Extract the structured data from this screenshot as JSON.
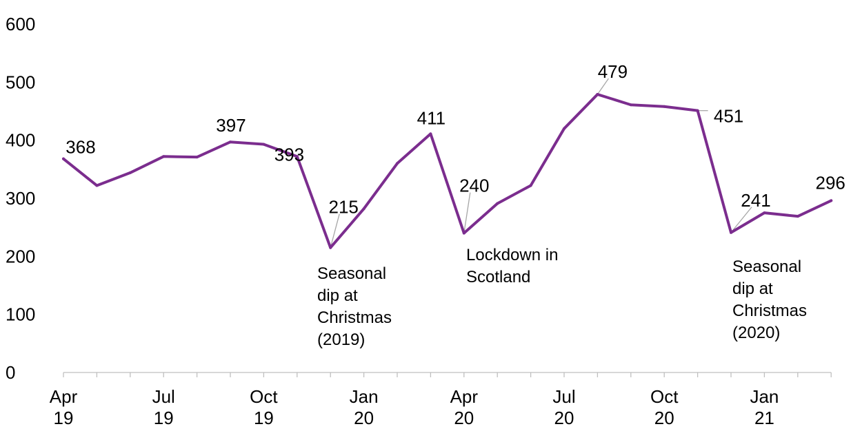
{
  "chart_data": {
    "type": "line",
    "title": "",
    "xlabel": "",
    "ylabel": "",
    "ylim": [
      0,
      600
    ],
    "yticks": [
      "0",
      "100",
      "200",
      "300",
      "400",
      "500",
      "600"
    ],
    "grid": false,
    "legend": "none",
    "x": [
      "Apr 19",
      "May 19",
      "Jun 19",
      "Jul 19",
      "Aug 19",
      "Sep 19",
      "Oct 19",
      "Nov 19",
      "Dec 19",
      "Jan 20",
      "Feb 20",
      "Mar 20",
      "Apr 20",
      "May 20",
      "Jun 20",
      "Jul 20",
      "Aug 20",
      "Sep 20",
      "Oct 20",
      "Nov 20",
      "Dec 20",
      "Jan 21",
      "Feb 21",
      "Mar 21"
    ],
    "xtick_labels": [
      {
        "index": 0,
        "line1": "Apr",
        "line2": "19"
      },
      {
        "index": 3,
        "line1": "Jul",
        "line2": "19"
      },
      {
        "index": 6,
        "line1": "Oct",
        "line2": "19"
      },
      {
        "index": 9,
        "line1": "Jan",
        "line2": "20"
      },
      {
        "index": 12,
        "line1": "Apr",
        "line2": "20"
      },
      {
        "index": 15,
        "line1": "Jul",
        "line2": "20"
      },
      {
        "index": 18,
        "line1": "Oct",
        "line2": "20"
      },
      {
        "index": 21,
        "line1": "Jan",
        "line2": "21"
      }
    ],
    "series": [
      {
        "color": "#7B2D8E",
        "values": [
          368,
          322,
          344,
          372,
          371,
          397,
          393,
          372,
          215,
          282,
          360,
          411,
          240,
          291,
          322,
          420,
          479,
          461,
          458,
          451,
          241,
          275,
          269,
          296
        ]
      }
    ],
    "data_labels": [
      {
        "index": 0,
        "text": "368"
      },
      {
        "index": 5,
        "text": "397"
      },
      {
        "index": 6,
        "text": "393"
      },
      {
        "index": 8,
        "text": "215"
      },
      {
        "index": 11,
        "text": "411"
      },
      {
        "index": 12,
        "text": "240"
      },
      {
        "index": 16,
        "text": "479"
      },
      {
        "index": 19,
        "text": "451"
      },
      {
        "index": 20,
        "text": "241"
      },
      {
        "index": 23,
        "text": "296"
      }
    ],
    "annotations": [
      {
        "index": 8,
        "lines": [
          "Seasonal",
          "dip at",
          "Christmas",
          "(2019)"
        ]
      },
      {
        "index": 12,
        "lines": [
          "Lockdown in",
          "Scotland"
        ]
      },
      {
        "index": 20,
        "lines": [
          "Seasonal",
          "dip at",
          "Christmas",
          "(2020)"
        ]
      }
    ]
  }
}
